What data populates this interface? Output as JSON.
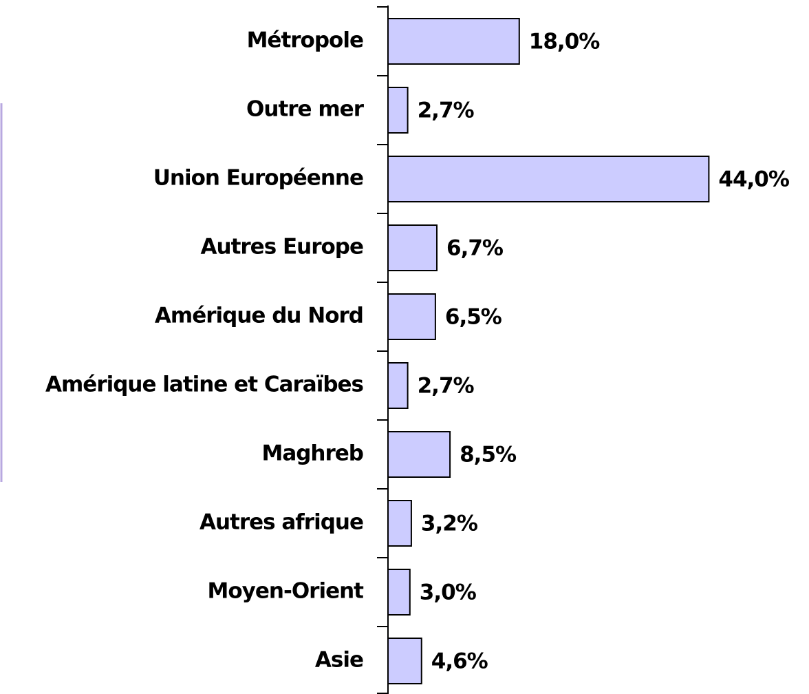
{
  "chart_data": {
    "type": "barh",
    "categories": [
      "Métropole",
      "Outre mer",
      "Union Européenne",
      "Autres Europe",
      "Amérique du Nord",
      "Amérique latine et Caraïbes",
      "Maghreb",
      "Autres afrique",
      "Moyen-Orient",
      "Asie"
    ],
    "values": [
      18.0,
      2.7,
      44.0,
      6.7,
      6.5,
      2.7,
      8.5,
      3.2,
      3.0,
      4.6
    ],
    "value_labels": [
      "18,0%",
      "2,7%",
      "44,0%",
      "6,7%",
      "6,5%",
      "2,7%",
      "8,5%",
      "3,2%",
      "3,0%",
      "4,6%"
    ],
    "color": "#ccccff",
    "xlim": [
      0,
      50
    ]
  }
}
